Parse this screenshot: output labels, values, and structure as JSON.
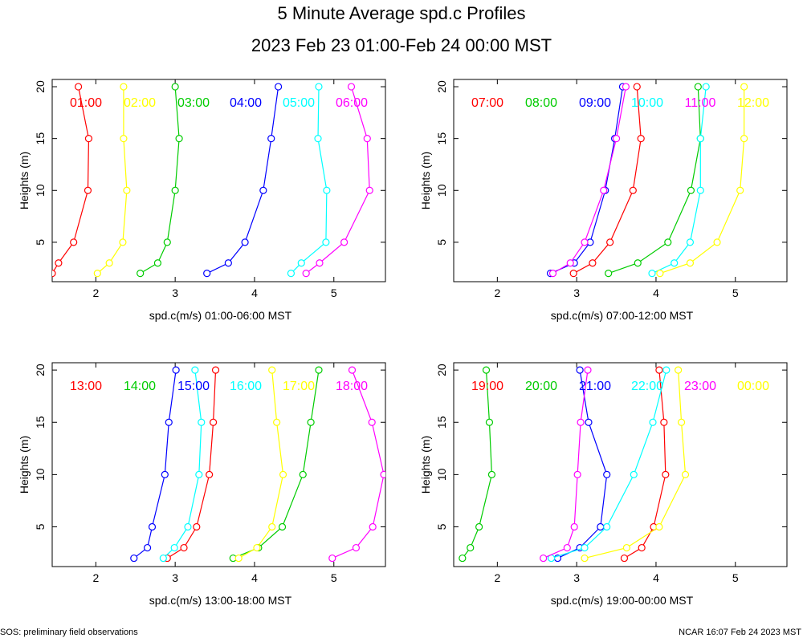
{
  "title": "5 Minute Average spd.c Profiles",
  "subtitle": "2023 Feb 23 01:00-Feb 24 00:00 MST",
  "footer_left": "SOS: preliminary field observations",
  "footer_right": "NCAR 16:07 Feb 24 2023 MST",
  "colors": {
    "red": "#ff0000",
    "green": "#00cc00",
    "blue": "#0000ff",
    "cyan": "#00ffff",
    "magenta": "#ff00ff",
    "yellow": "#ffff00"
  },
  "chart_data": [
    {
      "type": "line",
      "xlabel": "spd.c(m/s) 01:00-06:00 MST",
      "ylabel": "Heights (m)",
      "xlim": [
        1.45,
        5.65
      ],
      "ylim": [
        1.2,
        20.7
      ],
      "xticks": [
        2,
        3,
        4,
        5
      ],
      "yticks": [
        5,
        10,
        15,
        20
      ],
      "heights": [
        2,
        3,
        5,
        10,
        15,
        20
      ],
      "series": [
        {
          "name": "01:00",
          "color": "red",
          "values": [
            1.45,
            1.53,
            1.72,
            1.9,
            1.91,
            1.78
          ]
        },
        {
          "name": "02:00",
          "color": "yellow",
          "values": [
            2.02,
            2.17,
            2.34,
            2.39,
            2.35,
            2.35
          ]
        },
        {
          "name": "03:00",
          "color": "green",
          "values": [
            2.56,
            2.78,
            2.9,
            3.0,
            3.05,
            3.0
          ]
        },
        {
          "name": "04:00",
          "color": "blue",
          "values": [
            3.4,
            3.67,
            3.88,
            4.11,
            4.21,
            4.3
          ]
        },
        {
          "name": "05:00",
          "color": "cyan",
          "values": [
            4.46,
            4.59,
            4.9,
            4.91,
            4.8,
            4.81
          ]
        },
        {
          "name": "06:00",
          "color": "magenta",
          "values": [
            4.65,
            4.82,
            5.13,
            5.45,
            5.42,
            5.22
          ]
        }
      ]
    },
    {
      "type": "line",
      "xlabel": "spd.c(m/s) 07:00-12:00 MST",
      "ylabel": "Heights (m)",
      "xlim": [
        1.45,
        5.65
      ],
      "ylim": [
        1.2,
        20.7
      ],
      "xticks": [
        2,
        3,
        4,
        5
      ],
      "yticks": [
        5,
        10,
        15,
        20
      ],
      "heights": [
        2,
        3,
        5,
        10,
        15,
        20
      ],
      "series": [
        {
          "name": "07:00",
          "color": "red",
          "values": [
            2.96,
            3.2,
            3.42,
            3.71,
            3.81,
            3.76
          ]
        },
        {
          "name": "08:00",
          "color": "green",
          "values": [
            3.4,
            3.77,
            4.15,
            4.44,
            4.56,
            4.53
          ]
        },
        {
          "name": "09:00",
          "color": "blue",
          "values": [
            2.67,
            2.97,
            3.17,
            3.36,
            3.48,
            3.58
          ]
        },
        {
          "name": "10:00",
          "color": "cyan",
          "values": [
            3.95,
            4.23,
            4.43,
            4.56,
            4.56,
            4.63
          ]
        },
        {
          "name": "11:00",
          "color": "magenta",
          "values": [
            2.7,
            2.92,
            3.1,
            3.34,
            3.5,
            3.62
          ]
        },
        {
          "name": "12:00",
          "color": "yellow",
          "values": [
            4.05,
            4.43,
            4.77,
            5.06,
            5.11,
            5.11
          ]
        }
      ]
    },
    {
      "type": "line",
      "xlabel": "spd.c(m/s) 13:00-18:00 MST",
      "ylabel": "Heights (m)",
      "xlim": [
        1.45,
        5.65
      ],
      "ylim": [
        1.2,
        20.7
      ],
      "xticks": [
        2,
        3,
        4,
        5
      ],
      "yticks": [
        5,
        10,
        15,
        20
      ],
      "heights": [
        2,
        3,
        5,
        10,
        15,
        20
      ],
      "series": [
        {
          "name": "13:00",
          "color": "red",
          "values": [
            2.9,
            3.11,
            3.27,
            3.43,
            3.48,
            3.51
          ]
        },
        {
          "name": "14:00",
          "color": "green",
          "values": [
            3.73,
            4.05,
            4.35,
            4.61,
            4.71,
            4.81
          ]
        },
        {
          "name": "15:00",
          "color": "blue",
          "values": [
            2.48,
            2.65,
            2.71,
            2.87,
            2.92,
            3.01
          ]
        },
        {
          "name": "16:00",
          "color": "cyan",
          "values": [
            2.85,
            2.99,
            3.16,
            3.3,
            3.33,
            3.25
          ]
        },
        {
          "name": "17:00",
          "color": "yellow",
          "values": [
            3.8,
            4.03,
            4.22,
            4.36,
            4.28,
            4.22
          ]
        },
        {
          "name": "18:00",
          "color": "magenta",
          "values": [
            4.98,
            5.28,
            5.49,
            5.63,
            5.48,
            5.23
          ]
        }
      ]
    },
    {
      "type": "line",
      "xlabel": "spd.c(m/s) 19:00-00:00 MST",
      "ylabel": "Heights (m)",
      "xlim": [
        1.45,
        5.65
      ],
      "ylim": [
        1.2,
        20.7
      ],
      "xticks": [
        2,
        3,
        4,
        5
      ],
      "yticks": [
        5,
        10,
        15,
        20
      ],
      "heights": [
        2,
        3,
        5,
        10,
        15,
        20
      ],
      "series": [
        {
          "name": "19:00",
          "color": "red",
          "values": [
            3.6,
            3.82,
            3.97,
            4.12,
            4.1,
            4.04
          ]
        },
        {
          "name": "20:00",
          "color": "green",
          "values": [
            1.56,
            1.66,
            1.77,
            1.93,
            1.9,
            1.86
          ]
        },
        {
          "name": "21:00",
          "color": "blue",
          "values": [
            2.76,
            3.04,
            3.3,
            3.38,
            3.15,
            3.04
          ]
        },
        {
          "name": "22:00",
          "color": "cyan",
          "values": [
            2.68,
            3.1,
            3.38,
            3.72,
            3.96,
            4.13
          ]
        },
        {
          "name": "23:00",
          "color": "magenta",
          "values": [
            2.58,
            2.88,
            2.97,
            3.01,
            3.05,
            3.14
          ]
        },
        {
          "name": "00:00",
          "color": "yellow",
          "values": [
            3.1,
            3.63,
            4.04,
            4.37,
            4.32,
            4.28
          ]
        }
      ]
    }
  ]
}
